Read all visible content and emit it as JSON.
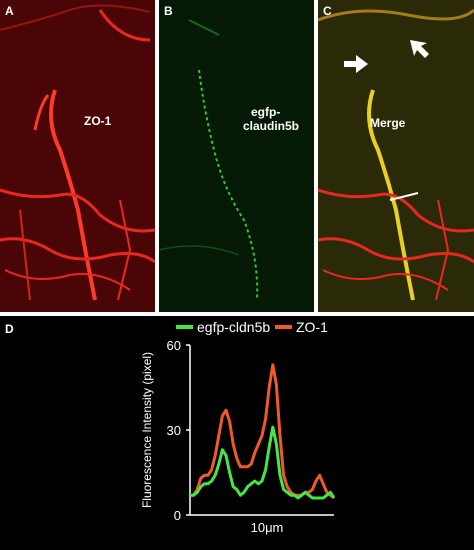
{
  "figure": {
    "panels": [
      {
        "letter": "A",
        "label": "ZO-1",
        "channel": "red",
        "color": "#e8281e"
      },
      {
        "letter": "B",
        "label_line1": "egfp-",
        "label_line2": "claudin5b",
        "channel": "green",
        "color": "#2ec82e"
      },
      {
        "letter": "C",
        "label": "Merge",
        "channel": "merge",
        "arrow_color": "#ffffff"
      }
    ],
    "panel_d_letter": "D"
  },
  "chart_data": {
    "type": "line",
    "title": "",
    "xlabel": "10μm",
    "ylabel": "Fluorescence Intensity (pixel)",
    "ylim": [
      0,
      60
    ],
    "yticks": [
      "0",
      "30",
      "60"
    ],
    "legend_position": "top",
    "x": [
      0,
      1,
      2,
      3,
      4,
      5,
      6,
      7,
      8,
      9,
      10,
      11,
      12,
      13,
      14,
      15,
      16,
      17,
      18,
      19,
      20,
      21,
      22,
      23,
      24,
      25,
      26,
      27,
      28,
      29,
      30,
      31,
      32,
      33,
      34,
      35,
      36,
      37,
      38,
      39,
      40
    ],
    "series": [
      {
        "name": "egfp-cldn5b",
        "color": "#46e646",
        "values": [
          7,
          7,
          8,
          10,
          11,
          11,
          12,
          14,
          18,
          23,
          21,
          15,
          10,
          9,
          7,
          8,
          10,
          11,
          12,
          11,
          12,
          16,
          24,
          31,
          25,
          14,
          9,
          8,
          7,
          7,
          6,
          7,
          8,
          7,
          6,
          6,
          6,
          6,
          7,
          8,
          6
        ]
      },
      {
        "name": "ZO-1",
        "color": "#f05a28",
        "values": [
          7,
          7,
          9,
          13,
          14,
          14,
          16,
          21,
          28,
          35,
          37,
          33,
          25,
          20,
          17,
          17,
          17,
          18,
          22,
          25,
          28,
          34,
          45,
          53,
          46,
          28,
          14,
          10,
          8,
          7,
          7,
          7,
          8,
          8,
          9,
          12,
          14,
          11,
          8,
          7,
          6
        ]
      }
    ]
  }
}
